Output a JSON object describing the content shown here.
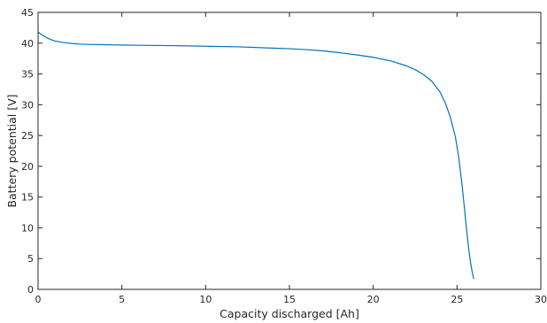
{
  "chart_data": {
    "type": "line",
    "title": "",
    "xlabel": "Capacity discharged [Ah]",
    "ylabel": "Battery potential [V]",
    "xlim": [
      0,
      30
    ],
    "ylim": [
      0,
      45
    ],
    "xticks": [
      "0",
      "5",
      "10",
      "15",
      "20",
      "25",
      "30"
    ],
    "yticks": [
      "0",
      "5",
      "10",
      "15",
      "20",
      "25",
      "30",
      "35",
      "40",
      "45"
    ],
    "grid": false,
    "legend": "none",
    "series": [
      {
        "color": "#0072bd",
        "x": [
          0,
          0.1,
          0.25,
          0.5,
          0.75,
          1,
          1.5,
          2,
          2.5,
          3,
          4,
          5,
          6,
          8,
          10,
          12,
          14,
          15,
          16,
          17,
          18,
          19,
          20,
          21,
          22,
          22.5,
          23,
          23.5,
          24,
          24.3,
          24.6,
          24.9,
          25.1,
          25.3,
          25.45,
          25.6,
          25.7,
          25.8,
          25.88,
          25.94,
          25.98,
          26.0
        ],
        "y": [
          41.8,
          41.6,
          41.3,
          40.9,
          40.6,
          40.35,
          40.1,
          39.95,
          39.85,
          39.8,
          39.75,
          39.7,
          39.65,
          39.6,
          39.5,
          39.4,
          39.2,
          39.1,
          38.95,
          38.75,
          38.45,
          38.1,
          37.7,
          37.15,
          36.3,
          35.7,
          34.9,
          33.8,
          32.0,
          30.3,
          28.0,
          24.8,
          21.5,
          17.0,
          13.0,
          9.0,
          6.5,
          4.5,
          3.2,
          2.4,
          1.9,
          1.7
        ]
      }
    ]
  }
}
